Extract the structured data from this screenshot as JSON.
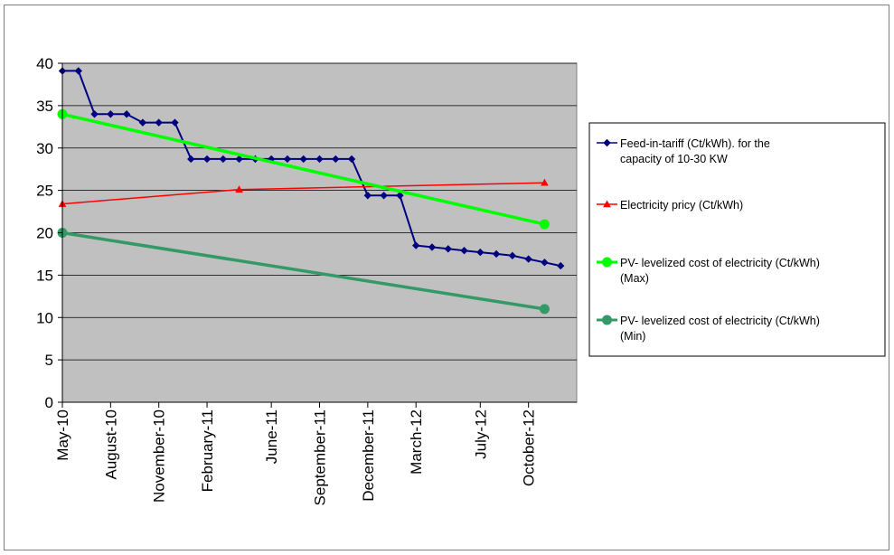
{
  "chart_data": {
    "type": "line",
    "title": "",
    "xlabel": "",
    "ylabel": "",
    "ylim": [
      0,
      40
    ],
    "y_ticks": [
      "0",
      "5",
      "10",
      "15",
      "20",
      "25",
      "30",
      "35",
      "40"
    ],
    "x_range": [
      "2010-05-01",
      "2013-01-01"
    ],
    "x_ticks": [
      {
        "date": "2010-05-01",
        "label": "May-10"
      },
      {
        "date": "2010-08-01",
        "label": "August-10"
      },
      {
        "date": "2010-11-01",
        "label": "November-10"
      },
      {
        "date": "2011-02-01",
        "label": "February-11"
      },
      {
        "date": "2011-06-01",
        "label": "June-11"
      },
      {
        "date": "2011-09-01",
        "label": "September-11"
      },
      {
        "date": "2011-12-01",
        "label": "December-11"
      },
      {
        "date": "2012-03-01",
        "label": "March-12"
      },
      {
        "date": "2012-07-01",
        "label": "July-12"
      },
      {
        "date": "2012-10-01",
        "label": "October-12"
      }
    ],
    "grid": "horizontal",
    "plot_background": "#c0c0c0",
    "legend_position": "right",
    "series": [
      {
        "name": "Feed-in-tariff (Ct/kWh). for the capacity of 10-30 KW",
        "color": "#000080",
        "marker": "diamond",
        "step": true,
        "points": [
          {
            "x": "2010-05-01",
            "y": 39.1
          },
          {
            "x": "2010-06-01",
            "y": 39.1
          },
          {
            "x": "2010-07-01",
            "y": 34.0
          },
          {
            "x": "2010-08-01",
            "y": 34.0
          },
          {
            "x": "2010-09-01",
            "y": 34.0
          },
          {
            "x": "2010-10-01",
            "y": 33.0
          },
          {
            "x": "2010-11-01",
            "y": 33.0
          },
          {
            "x": "2010-12-01",
            "y": 33.0
          },
          {
            "x": "2011-01-01",
            "y": 28.7
          },
          {
            "x": "2011-02-01",
            "y": 28.7
          },
          {
            "x": "2011-03-01",
            "y": 28.7
          },
          {
            "x": "2011-04-01",
            "y": 28.7
          },
          {
            "x": "2011-05-01",
            "y": 28.7
          },
          {
            "x": "2011-06-01",
            "y": 28.7
          },
          {
            "x": "2011-07-01",
            "y": 28.7
          },
          {
            "x": "2011-08-01",
            "y": 28.7
          },
          {
            "x": "2011-09-01",
            "y": 28.7
          },
          {
            "x": "2011-10-01",
            "y": 28.7
          },
          {
            "x": "2011-11-01",
            "y": 28.7
          },
          {
            "x": "2011-12-01",
            "y": 24.4
          },
          {
            "x": "2012-01-01",
            "y": 24.4
          },
          {
            "x": "2012-02-01",
            "y": 24.4
          },
          {
            "x": "2012-03-01",
            "y": 18.5
          },
          {
            "x": "2012-04-01",
            "y": 18.3
          },
          {
            "x": "2012-05-01",
            "y": 18.1
          },
          {
            "x": "2012-06-01",
            "y": 17.9
          },
          {
            "x": "2012-07-01",
            "y": 17.7
          },
          {
            "x": "2012-08-01",
            "y": 17.5
          },
          {
            "x": "2012-09-01",
            "y": 17.3
          },
          {
            "x": "2012-10-01",
            "y": 16.9
          },
          {
            "x": "2012-11-01",
            "y": 16.5
          },
          {
            "x": "2012-12-01",
            "y": 16.1
          }
        ]
      },
      {
        "name": "Electricity pricy (Ct/kWh)",
        "color": "#ff0000",
        "marker": "triangle",
        "points": [
          {
            "x": "2010-05-01",
            "y": 23.4
          },
          {
            "x": "2011-04-01",
            "y": 25.1
          },
          {
            "x": "2012-11-01",
            "y": 25.9
          }
        ]
      },
      {
        "name": "PV- levelized cost of electricity (Ct/kWh) (Max)",
        "color": "#00ff00",
        "marker": "circle",
        "points": [
          {
            "x": "2010-05-01",
            "y": 34.0
          },
          {
            "x": "2012-11-01",
            "y": 21.0
          }
        ]
      },
      {
        "name": "PV- levelized cost of electricity (Ct/kWh) (Min)",
        "color": "#339966",
        "marker": "circle",
        "points": [
          {
            "x": "2010-05-01",
            "y": 20.0
          },
          {
            "x": "2012-11-01",
            "y": 11.0
          }
        ]
      }
    ]
  }
}
